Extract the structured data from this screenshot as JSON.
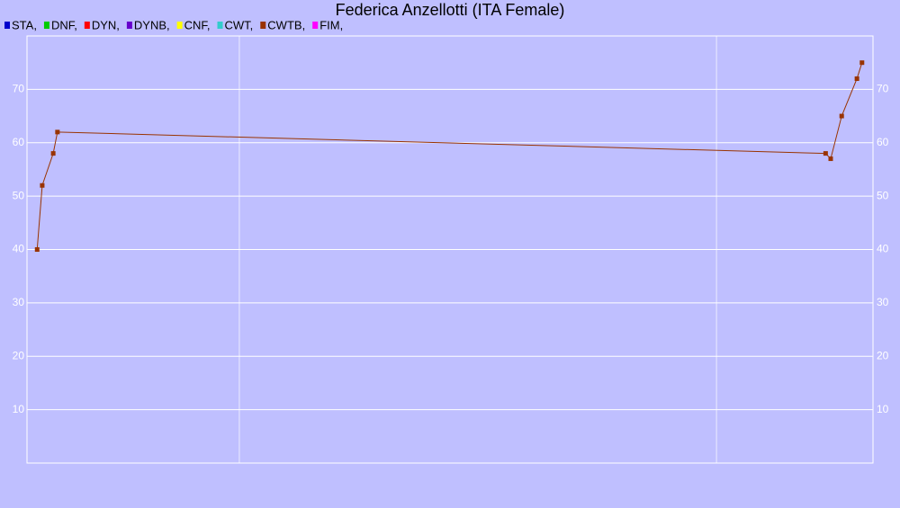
{
  "chart_data": {
    "type": "line",
    "title": "Federica Anzellotti (ITA Female)",
    "legend": [
      {
        "name": "STA,",
        "color": "#0000cc"
      },
      {
        "name": "DNF,",
        "color": "#00cc00"
      },
      {
        "name": "DYN,",
        "color": "#ff0000"
      },
      {
        "name": "DYNB,",
        "color": "#6600cc"
      },
      {
        "name": "CNF,",
        "color": "#ffff00"
      },
      {
        "name": "CWT,",
        "color": "#33cccc"
      },
      {
        "name": "CWTB,",
        "color": "#993300"
      },
      {
        "name": "FIM,",
        "color": "#ff00ff"
      }
    ],
    "x": [
      1.2,
      1.8,
      3.1,
      3.6,
      94.4,
      95.0,
      96.3,
      98.1,
      98.7
    ],
    "xlim": [
      0,
      100
    ],
    "xticks": [
      25.1,
      81.5
    ],
    "series": [
      {
        "name": "CWTB,",
        "color": "#993300",
        "values": [
          40,
          52,
          58,
          62,
          58,
          57,
          65,
          72,
          75
        ]
      }
    ],
    "ylim": [
      0,
      80
    ],
    "yticks": [
      10,
      20,
      30,
      40,
      50,
      60,
      70
    ],
    "grid": true
  }
}
